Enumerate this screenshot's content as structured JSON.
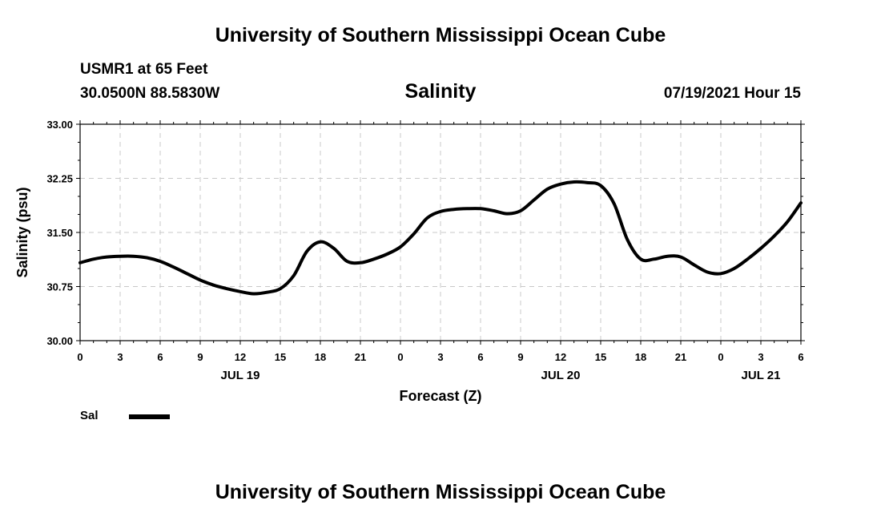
{
  "header": {
    "title": "University of Southern Mississippi Ocean Cube",
    "station": "USMR1 at 65 Feet",
    "coordinates": "30.0500N  88.5830W",
    "variable": "Salinity",
    "datetime": "07/19/2021 Hour 15"
  },
  "footer": {
    "title": "University of Southern Mississippi Ocean Cube"
  },
  "legend": {
    "label": "Sal"
  },
  "chart_data": {
    "type": "line",
    "xlabel": "Forecast (Z)",
    "ylabel": "Salinity (psu)",
    "ylim": [
      30.0,
      33.0
    ],
    "xlim": [
      0,
      54
    ],
    "yticks": [
      "30.00",
      "30.75",
      "31.50",
      "32.25",
      "33.00"
    ],
    "xtick_labels": [
      "0",
      "3",
      "6",
      "9",
      "12",
      "15",
      "18",
      "21",
      "0",
      "3",
      "6",
      "9",
      "12",
      "15",
      "18",
      "21",
      "0",
      "3",
      "6"
    ],
    "day_labels": [
      {
        "label": "JUL 19",
        "hour": 12
      },
      {
        "label": "JUL 20",
        "hour": 36
      },
      {
        "label": "JUL 21",
        "hour": 51
      }
    ],
    "grid": true,
    "series": [
      {
        "name": "Sal",
        "color": "#000000",
        "x": [
          0,
          1,
          2,
          3,
          4,
          5,
          6,
          7,
          8,
          9,
          10,
          11,
          12,
          13,
          14,
          15,
          16,
          17,
          18,
          19,
          20,
          21,
          22,
          23,
          24,
          25,
          26,
          27,
          28,
          29,
          30,
          31,
          32,
          33,
          34,
          35,
          36,
          37,
          38,
          39,
          40,
          41,
          42,
          43,
          44,
          45,
          46,
          47,
          48,
          49,
          50,
          51,
          52,
          53,
          54
        ],
        "y": [
          31.08,
          31.13,
          31.16,
          31.17,
          31.17,
          31.15,
          31.1,
          31.02,
          30.93,
          30.84,
          30.77,
          30.72,
          30.68,
          30.65,
          30.67,
          30.72,
          30.9,
          31.24,
          31.37,
          31.28,
          31.1,
          31.08,
          31.13,
          31.2,
          31.3,
          31.48,
          31.7,
          31.79,
          31.82,
          31.83,
          31.83,
          31.8,
          31.76,
          31.8,
          31.95,
          32.1,
          32.17,
          32.2,
          32.19,
          32.15,
          31.9,
          31.4,
          31.13,
          31.13,
          31.17,
          31.16,
          31.05,
          30.95,
          30.93,
          31.0,
          31.13,
          31.28,
          31.45,
          31.65,
          31.91
        ]
      }
    ]
  }
}
